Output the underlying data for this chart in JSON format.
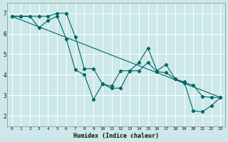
{
  "xlabel": "Humidex (Indice chaleur)",
  "bg_color": "#cce8e8",
  "grid_color": "#ffffff",
  "line_color": "#006666",
  "xlim": [
    -0.5,
    23.5
  ],
  "ylim": [
    1.5,
    7.5
  ],
  "xticks": [
    0,
    1,
    2,
    3,
    4,
    5,
    6,
    7,
    8,
    9,
    10,
    11,
    12,
    13,
    14,
    15,
    16,
    17,
    18,
    19,
    20,
    21,
    22,
    23
  ],
  "yticks": [
    2,
    3,
    4,
    5,
    6,
    7
  ],
  "line1_x": [
    0,
    1,
    2,
    3,
    4,
    5,
    6,
    7,
    8,
    9,
    10,
    11,
    12,
    13,
    14,
    15,
    16,
    17,
    18,
    19,
    20,
    21,
    22,
    23
  ],
  "line1_y": [
    6.85,
    6.85,
    6.85,
    6.3,
    6.65,
    6.85,
    5.75,
    4.25,
    4.0,
    2.8,
    3.55,
    3.35,
    3.35,
    4.2,
    4.6,
    5.3,
    4.2,
    4.5,
    3.8,
    3.65,
    2.25,
    2.2,
    2.5,
    2.9
  ],
  "line2_x": [
    0,
    1,
    3,
    4,
    5,
    6,
    7,
    8,
    9,
    10,
    11,
    12,
    13,
    14,
    15,
    16,
    17,
    18,
    19,
    20,
    21,
    22,
    23
  ],
  "line2_y": [
    6.85,
    6.85,
    6.85,
    6.85,
    7.0,
    7.0,
    5.85,
    4.3,
    4.3,
    3.55,
    3.45,
    4.2,
    4.2,
    4.2,
    4.6,
    4.15,
    4.1,
    3.8,
    3.6,
    3.5,
    2.95,
    2.9,
    2.9
  ],
  "line3_x": [
    0,
    23
  ],
  "line3_y": [
    6.85,
    2.9
  ]
}
